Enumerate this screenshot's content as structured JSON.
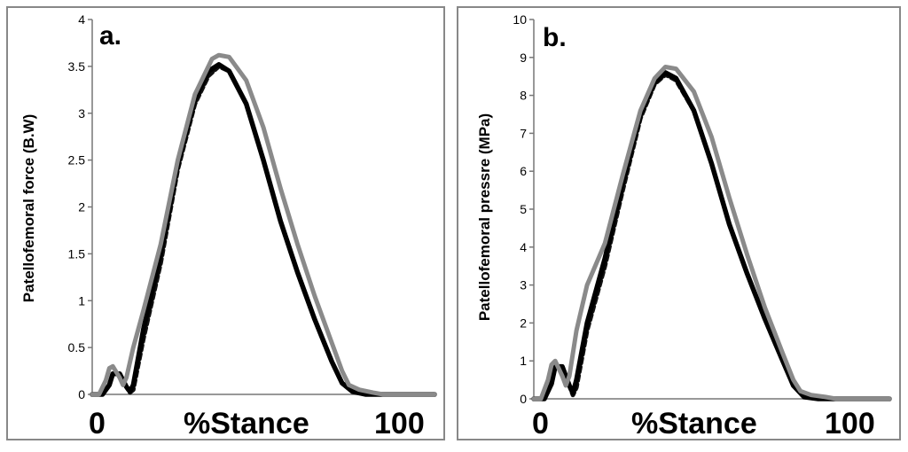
{
  "chart_data": [
    {
      "type": "line",
      "panel_label": "a.",
      "ylabel": "Patellofemoral force (B.W)",
      "x_tick_labels": [
        "0",
        "100"
      ],
      "x_axis_text": "%Stance",
      "ylim": [
        0,
        4
      ],
      "y_ticks": [
        0,
        0.5,
        1,
        1.5,
        2,
        2.5,
        3,
        3.5,
        4
      ],
      "y_tick_labels": [
        "0",
        "0.5",
        "1",
        "1.5",
        "2",
        "2.5",
        "3",
        "3.5",
        "4"
      ],
      "xlim": [
        0,
        100
      ],
      "grid": false,
      "series": [
        {
          "color": "#111111",
          "style": "dashed",
          "points": [
            [
              0,
              0
            ],
            [
              3,
              0
            ],
            [
              5,
              0.1
            ],
            [
              6,
              0.22
            ],
            [
              8,
              0.22
            ],
            [
              10,
              0.08
            ],
            [
              11,
              0.02
            ],
            [
              12,
              0.05
            ],
            [
              15,
              0.6
            ],
            [
              20,
              1.4
            ],
            [
              25,
              2.4
            ],
            [
              30,
              3.1
            ],
            [
              34,
              3.4
            ],
            [
              37,
              3.5
            ],
            [
              40,
              3.45
            ],
            [
              45,
              3.1
            ],
            [
              50,
              2.5
            ],
            [
              55,
              1.85
            ],
            [
              60,
              1.3
            ],
            [
              65,
              0.8
            ],
            [
              70,
              0.35
            ],
            [
              73,
              0.12
            ],
            [
              76,
              0.03
            ],
            [
              80,
              0
            ],
            [
              100,
              0
            ]
          ]
        },
        {
          "color": "#000000",
          "style": "solid",
          "points": [
            [
              0,
              0
            ],
            [
              3,
              0
            ],
            [
              5,
              0.1
            ],
            [
              6,
              0.22
            ],
            [
              8,
              0.22
            ],
            [
              10,
              0.08
            ],
            [
              11,
              0.03
            ],
            [
              12,
              0.1
            ],
            [
              15,
              0.7
            ],
            [
              20,
              1.5
            ],
            [
              25,
              2.45
            ],
            [
              30,
              3.15
            ],
            [
              34,
              3.45
            ],
            [
              37,
              3.52
            ],
            [
              40,
              3.45
            ],
            [
              45,
              3.1
            ],
            [
              50,
              2.5
            ],
            [
              55,
              1.85
            ],
            [
              60,
              1.3
            ],
            [
              65,
              0.8
            ],
            [
              70,
              0.35
            ],
            [
              73,
              0.12
            ],
            [
              76,
              0.03
            ],
            [
              80,
              0
            ],
            [
              100,
              0
            ]
          ]
        },
        {
          "color": "#8a8a8a",
          "style": "solid",
          "points": [
            [
              0,
              0
            ],
            [
              2,
              0
            ],
            [
              4,
              0.15
            ],
            [
              5,
              0.28
            ],
            [
              6,
              0.3
            ],
            [
              8,
              0.18
            ],
            [
              9,
              0.1
            ],
            [
              10,
              0.18
            ],
            [
              12,
              0.5
            ],
            [
              15,
              0.9
            ],
            [
              20,
              1.6
            ],
            [
              25,
              2.5
            ],
            [
              30,
              3.2
            ],
            [
              35,
              3.58
            ],
            [
              37,
              3.62
            ],
            [
              40,
              3.6
            ],
            [
              45,
              3.35
            ],
            [
              50,
              2.85
            ],
            [
              55,
              2.2
            ],
            [
              60,
              1.6
            ],
            [
              65,
              1.05
            ],
            [
              70,
              0.55
            ],
            [
              73,
              0.25
            ],
            [
              75,
              0.1
            ],
            [
              78,
              0.05
            ],
            [
              82,
              0.02
            ],
            [
              85,
              0
            ],
            [
              100,
              0
            ]
          ]
        }
      ]
    },
    {
      "type": "line",
      "panel_label": "b.",
      "ylabel": "Patellofemoral pressre (MPa)",
      "x_tick_labels": [
        "0",
        "100"
      ],
      "x_axis_text": "%Stance",
      "ylim": [
        0,
        10
      ],
      "y_ticks": [
        0,
        1,
        2,
        3,
        4,
        5,
        6,
        7,
        8,
        9,
        10
      ],
      "y_tick_labels": [
        "0",
        "1",
        "2",
        "3",
        "4",
        "5",
        "6",
        "7",
        "8",
        "9",
        "10"
      ],
      "xlim": [
        0,
        100
      ],
      "grid": false,
      "series": [
        {
          "color": "#111111",
          "style": "dashed",
          "points": [
            [
              0,
              0
            ],
            [
              3,
              0
            ],
            [
              5,
              0.4
            ],
            [
              6,
              0.85
            ],
            [
              8,
              0.85
            ],
            [
              10,
              0.35
            ],
            [
              11,
              0.1
            ],
            [
              12,
              0.3
            ],
            [
              15,
              1.8
            ],
            [
              20,
              3.5
            ],
            [
              25,
              5.5
            ],
            [
              30,
              7.4
            ],
            [
              34,
              8.3
            ],
            [
              37,
              8.55
            ],
            [
              40,
              8.4
            ],
            [
              45,
              7.6
            ],
            [
              50,
              6.2
            ],
            [
              55,
              4.6
            ],
            [
              60,
              3.3
            ],
            [
              65,
              2.1
            ],
            [
              70,
              1.0
            ],
            [
              73,
              0.35
            ],
            [
              76,
              0.05
            ],
            [
              80,
              0
            ],
            [
              100,
              0
            ]
          ]
        },
        {
          "color": "#000000",
          "style": "solid",
          "points": [
            [
              0,
              0
            ],
            [
              3,
              0
            ],
            [
              5,
              0.4
            ],
            [
              6,
              0.85
            ],
            [
              8,
              0.85
            ],
            [
              10,
              0.35
            ],
            [
              11,
              0.15
            ],
            [
              12,
              0.5
            ],
            [
              15,
              2.0
            ],
            [
              20,
              3.7
            ],
            [
              25,
              5.7
            ],
            [
              30,
              7.5
            ],
            [
              34,
              8.35
            ],
            [
              37,
              8.6
            ],
            [
              40,
              8.45
            ],
            [
              45,
              7.6
            ],
            [
              50,
              6.2
            ],
            [
              55,
              4.6
            ],
            [
              60,
              3.3
            ],
            [
              65,
              2.1
            ],
            [
              70,
              1.0
            ],
            [
              73,
              0.35
            ],
            [
              76,
              0.05
            ],
            [
              80,
              0
            ],
            [
              100,
              0
            ]
          ]
        },
        {
          "color": "#8a8a8a",
          "style": "solid",
          "points": [
            [
              0,
              0
            ],
            [
              2,
              0
            ],
            [
              4,
              0.5
            ],
            [
              5,
              0.9
            ],
            [
              6,
              1.0
            ],
            [
              8,
              0.6
            ],
            [
              9,
              0.35
            ],
            [
              10,
              0.6
            ],
            [
              12,
              1.8
            ],
            [
              15,
              3.0
            ],
            [
              20,
              4.1
            ],
            [
              25,
              5.9
            ],
            [
              30,
              7.6
            ],
            [
              34,
              8.45
            ],
            [
              37,
              8.75
            ],
            [
              40,
              8.7
            ],
            [
              45,
              8.1
            ],
            [
              50,
              6.9
            ],
            [
              55,
              5.3
            ],
            [
              60,
              3.8
            ],
            [
              65,
              2.4
            ],
            [
              70,
              1.2
            ],
            [
              73,
              0.5
            ],
            [
              75,
              0.2
            ],
            [
              78,
              0.1
            ],
            [
              82,
              0.05
            ],
            [
              85,
              0
            ],
            [
              100,
              0
            ]
          ]
        }
      ]
    }
  ]
}
